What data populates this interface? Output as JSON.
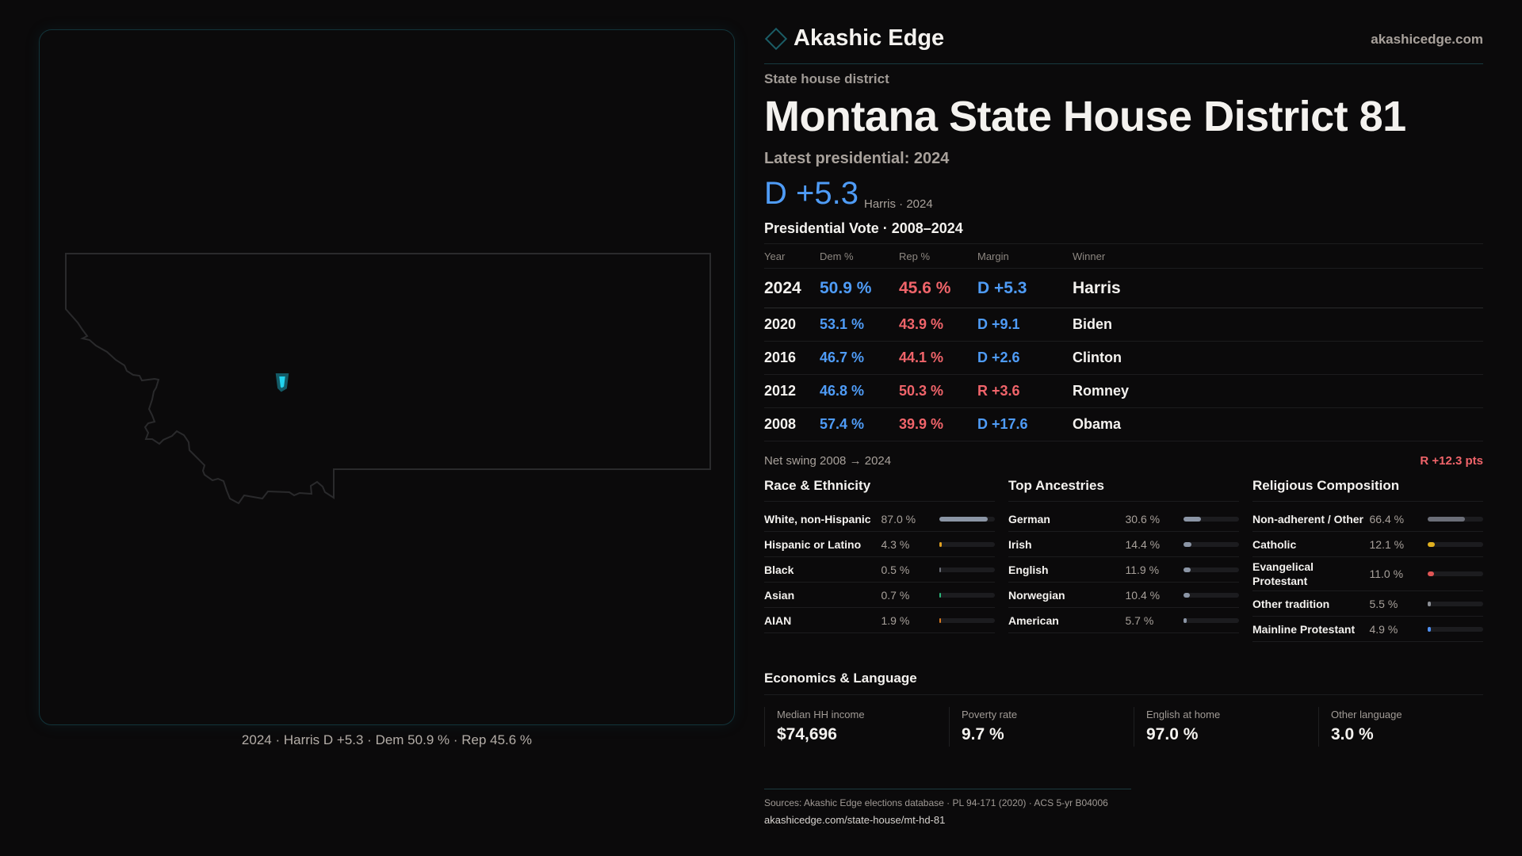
{
  "brand": {
    "name": "Akashic Edge",
    "site": "akashicedge.com",
    "accent": "#1b5d66"
  },
  "header": {
    "kicker": "State house district",
    "title": "Montana State House District 81",
    "latest": "Latest presidential: 2024",
    "margin": "D +5.3",
    "margin_sub": "Harris · 2024"
  },
  "map": {
    "state": "Montana",
    "highlight_color": "#22d3ee",
    "caption": "2024 · Harris D +5.3 · Dem 50.9 % · Rep 45.6 %"
  },
  "vote": {
    "title": "Presidential Vote · 2008–2024",
    "columns": [
      "Year",
      "Dem %",
      "Rep %",
      "Margin",
      "Winner"
    ],
    "rows": [
      {
        "year": "2024",
        "dem": "50.9 %",
        "rep": "45.6 %",
        "margin": "D +5.3",
        "party": "D",
        "winner": "Harris"
      },
      {
        "year": "2020",
        "dem": "53.1 %",
        "rep": "43.9 %",
        "margin": "D +9.1",
        "party": "D",
        "winner": "Biden"
      },
      {
        "year": "2016",
        "dem": "46.7 %",
        "rep": "44.1 %",
        "margin": "D +2.6",
        "party": "D",
        "winner": "Clinton"
      },
      {
        "year": "2012",
        "dem": "46.8 %",
        "rep": "50.3 %",
        "margin": "R +3.6",
        "party": "R",
        "winner": "Romney"
      },
      {
        "year": "2008",
        "dem": "57.4 %",
        "rep": "39.9 %",
        "margin": "D +17.6",
        "party": "D",
        "winner": "Obama"
      }
    ],
    "swing_label": "Net swing 2008 → 2024",
    "swing_value": "R +12.3 pts"
  },
  "colors": {
    "dem": "#4f9cf7",
    "rep": "#f0646a"
  },
  "sections": [
    {
      "title": "Race & Ethnicity",
      "items": [
        {
          "label": "White, non-Hispanic",
          "value": "87.0 %",
          "pct": 87.0,
          "color": "#8b95a5"
        },
        {
          "label": "Hispanic or Latino",
          "value": "4.3 %",
          "pct": 4.3,
          "color": "#e0a020"
        },
        {
          "label": "Black",
          "value": "0.5 %",
          "pct": 0.5,
          "color": "#6b6e78"
        },
        {
          "label": "Asian",
          "value": "0.7 %",
          "pct": 0.7,
          "color": "#2bb87a"
        },
        {
          "label": "AIAN",
          "value": "1.9 %",
          "pct": 1.9,
          "color": "#d97a20"
        }
      ]
    },
    {
      "title": "Top Ancestries",
      "items": [
        {
          "label": "German",
          "value": "30.6 %",
          "pct": 30.6,
          "color": "#8b95a5"
        },
        {
          "label": "Irish",
          "value": "14.4 %",
          "pct": 14.4,
          "color": "#8b95a5"
        },
        {
          "label": "English",
          "value": "11.9 %",
          "pct": 11.9,
          "color": "#8b95a5"
        },
        {
          "label": "Norwegian",
          "value": "10.4 %",
          "pct": 10.4,
          "color": "#8b95a5"
        },
        {
          "label": "American",
          "value": "5.7 %",
          "pct": 5.7,
          "color": "#8b95a5"
        }
      ]
    },
    {
      "title": "Religious Composition",
      "items": [
        {
          "label": "Non-adherent / Other",
          "value": "66.4 %",
          "pct": 66.4,
          "color": "#6b6e78"
        },
        {
          "label": "Catholic",
          "value": "12.1 %",
          "pct": 12.1,
          "color": "#e0b020"
        },
        {
          "label": "Evangelical Protestant",
          "value": "11.0 %",
          "pct": 11.0,
          "color": "#e05555"
        },
        {
          "label": "Other tradition",
          "value": "5.5 %",
          "pct": 5.5,
          "color": "#8b8e95"
        },
        {
          "label": "Mainline Protestant",
          "value": "4.9 %",
          "pct": 4.9,
          "color": "#4f8ff0"
        }
      ]
    }
  ],
  "economics": {
    "title": "Economics & Language",
    "cards": [
      {
        "label": "Median HH income",
        "value": "$74,696"
      },
      {
        "label": "Poverty rate",
        "value": "9.7 %"
      },
      {
        "label": "English at home",
        "value": "97.0 %"
      },
      {
        "label": "Other language",
        "value": "3.0 %"
      }
    ]
  },
  "footer": {
    "sources": "Sources: Akashic Edge elections database · PL 94-171 (2020) · ACS 5-yr B04006",
    "url": "akashicedge.com/state-house/mt-hd-81"
  }
}
